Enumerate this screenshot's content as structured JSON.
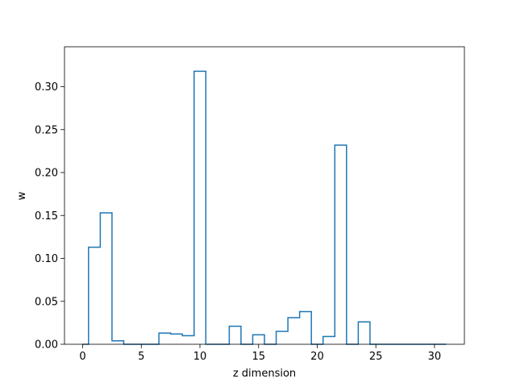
{
  "chart_data": {
    "type": "step",
    "title": "",
    "xlabel": "z dimension",
    "ylabel": "w",
    "xlim": [
      -1.55,
      32.55
    ],
    "ylim": [
      0,
      0.3465
    ],
    "xticks": [
      0,
      5,
      10,
      15,
      20,
      25,
      30
    ],
    "xtick_labels": [
      "0",
      "5",
      "10",
      "15",
      "20",
      "25",
      "30"
    ],
    "yticks": [
      0.0,
      0.05,
      0.1,
      0.15,
      0.2,
      0.25,
      0.3
    ],
    "ytick_labels": [
      "0.00",
      "0.05",
      "0.10",
      "0.15",
      "0.20",
      "0.25",
      "0.30"
    ],
    "grid": false,
    "series": [
      {
        "color": "#1f77b4",
        "step": "mid",
        "x": [
          0,
          1,
          2,
          3,
          4,
          5,
          6,
          7,
          8,
          9,
          10,
          11,
          12,
          13,
          14,
          15,
          16,
          17,
          18,
          19,
          20,
          21,
          22,
          23,
          24,
          25,
          26,
          27,
          28,
          29,
          30,
          31
        ],
        "values": [
          0.0,
          0.113,
          0.153,
          0.004,
          0.0,
          0.0,
          0.0,
          0.013,
          0.012,
          0.01,
          0.318,
          0.0,
          0.0,
          0.021,
          0.0,
          0.011,
          0.0,
          0.015,
          0.031,
          0.038,
          0.0,
          0.009,
          0.232,
          0.0,
          0.026,
          0.0,
          0.0,
          0.0,
          0.0,
          0.0,
          0.0,
          0.0
        ]
      }
    ]
  }
}
